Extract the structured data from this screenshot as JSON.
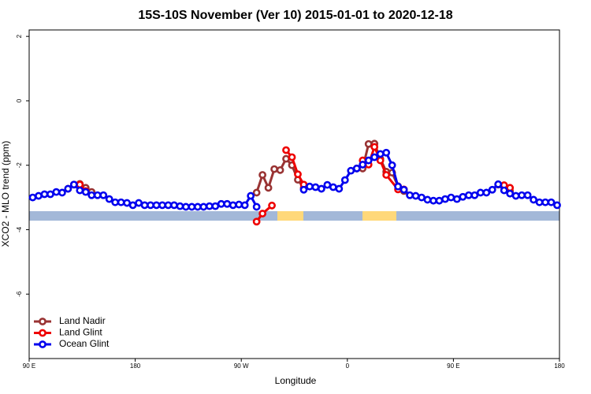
{
  "chart_data": {
    "type": "line",
    "title": "15S-10S November (Ver 10)   2015-01-01 to 2020-12-18",
    "x_label": "Longitude",
    "y_label": "XCO2 - MLO trend (ppm)",
    "xlim": [
      90,
      540
    ],
    "xticks": [
      {
        "value": 90,
        "label": "90 E"
      },
      {
        "value": 180,
        "label": "180"
      },
      {
        "value": 270,
        "label": "90 W"
      },
      {
        "value": 360,
        "label": "0"
      },
      {
        "value": 450,
        "label": "90 E"
      },
      {
        "value": 540,
        "label": "180"
      }
    ],
    "ylim": [
      -8,
      2.2
    ],
    "yticks": [
      -6,
      -4,
      -2,
      0,
      2
    ],
    "legend": "bottom-left",
    "series": [
      {
        "name": "Land Nadir",
        "color": "#993333",
        "x": [
          123,
          128,
          133,
          138,
          143,
          148,
          283,
          288,
          293,
          298,
          303,
          308,
          313,
          318,
          323,
          328,
          368,
          373,
          378,
          383,
          388,
          393,
          398,
          403,
          408,
          413,
          488,
          493,
          498
        ],
        "values": [
          -2.73,
          -2.6,
          -2.58,
          -2.7,
          -2.83,
          null,
          -2.85,
          -2.3,
          -2.7,
          -2.12,
          -2.15,
          -1.8,
          -2.0,
          -2.45,
          -2.7,
          null,
          -2.1,
          -2.1,
          -1.34,
          -1.33,
          -1.8,
          -2.2,
          -2.23,
          -2.65,
          -2.8,
          null,
          -2.6,
          -2.65,
          -2.8
        ]
      },
      {
        "name": "Land Glint",
        "color": "#ee0000",
        "x": [
          133,
          138,
          143,
          283,
          288,
          296,
          300,
          308,
          313,
          318,
          323,
          328,
          373,
          378,
          383,
          388,
          393,
          403,
          408,
          413,
          493,
          498
        ],
        "values": [
          -2.6,
          -2.8,
          null,
          -3.75,
          -3.5,
          -3.25,
          null,
          -1.53,
          -1.75,
          -2.28,
          -2.6,
          null,
          -1.85,
          -1.98,
          -1.43,
          -1.85,
          -2.3,
          -2.75,
          -2.75,
          null,
          -2.62,
          -2.7
        ]
      },
      {
        "name": "Ocean Glint",
        "color": "#0000ee",
        "x": [
          93,
          98,
          103,
          108,
          113,
          118,
          123,
          128,
          133,
          138,
          143,
          148,
          153,
          158,
          163,
          168,
          173,
          178,
          183,
          188,
          193,
          198,
          203,
          208,
          213,
          218,
          223,
          228,
          233,
          238,
          243,
          248,
          253,
          258,
          263,
          268,
          273,
          278,
          283,
          288,
          323,
          328,
          333,
          338,
          343,
          348,
          353,
          358,
          363,
          368,
          373,
          378,
          383,
          388,
          393,
          398,
          403,
          408,
          413,
          418,
          423,
          428,
          433,
          438,
          443,
          448,
          453,
          458,
          463,
          468,
          473,
          478,
          483,
          488,
          493,
          498,
          503,
          508,
          513,
          518,
          523,
          528,
          533,
          538
        ],
        "values": [
          -3.0,
          -2.95,
          -2.9,
          -2.9,
          -2.83,
          -2.85,
          -2.73,
          -2.6,
          -2.78,
          -2.83,
          -2.93,
          -2.93,
          -2.93,
          -3.05,
          -3.15,
          -3.15,
          -3.17,
          -3.24,
          -3.17,
          -3.24,
          -3.24,
          -3.24,
          -3.24,
          -3.24,
          -3.24,
          -3.27,
          -3.29,
          -3.29,
          -3.29,
          -3.29,
          -3.27,
          -3.27,
          -3.2,
          -3.2,
          -3.24,
          -3.22,
          -3.24,
          -2.95,
          -3.29,
          null,
          -2.76,
          -2.66,
          -2.68,
          -2.73,
          -2.61,
          -2.68,
          -2.73,
          -2.46,
          -2.17,
          -2.1,
          -1.98,
          -1.85,
          -1.75,
          -1.65,
          -1.61,
          -2.0,
          -2.66,
          -2.76,
          -2.93,
          -2.95,
          -3.0,
          -3.07,
          -3.1,
          -3.1,
          -3.05,
          -3.0,
          -3.05,
          -2.98,
          -2.93,
          -2.93,
          -2.85,
          -2.85,
          -2.76,
          -2.59,
          -2.78,
          -2.88,
          -2.95,
          -2.93,
          -2.93,
          -3.07,
          -3.15,
          -3.15,
          -3.15,
          -3.24
        ]
      }
    ]
  }
}
